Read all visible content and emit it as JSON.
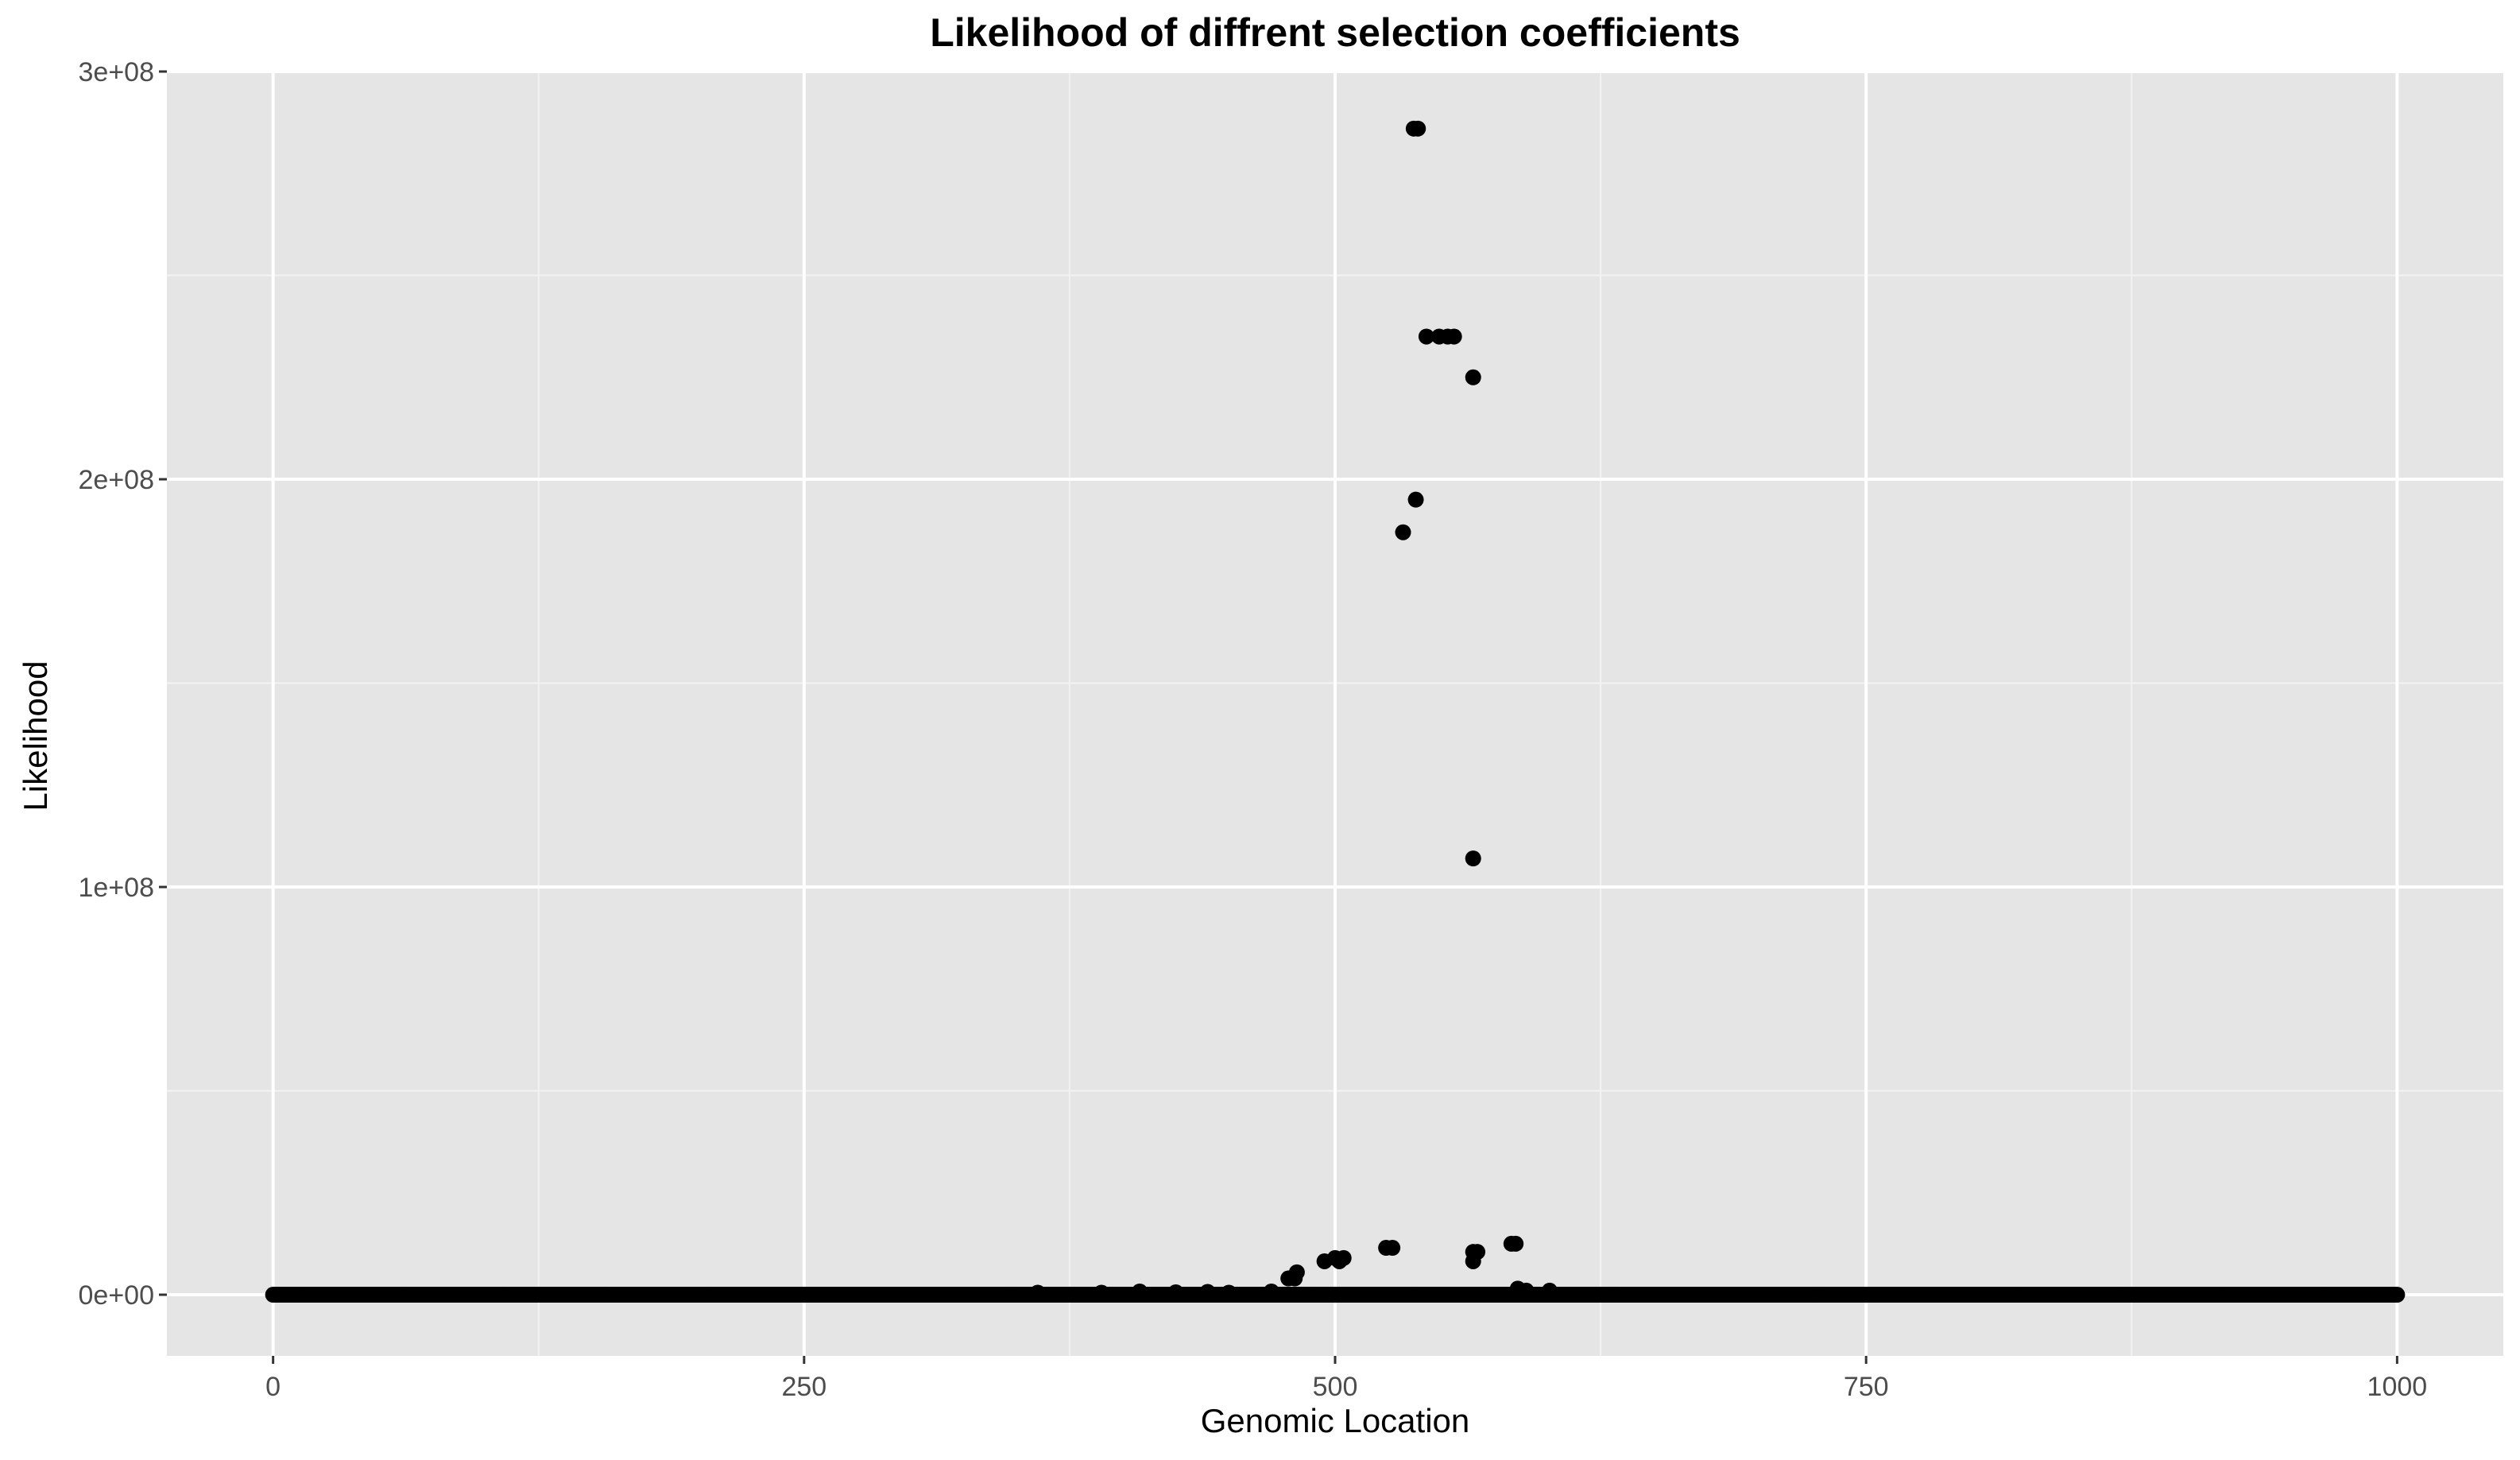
{
  "chart_data": {
    "type": "scatter",
    "title": "Likelihood of diffrent selection coefficients",
    "xlabel": "Genomic Location",
    "ylabel": "Likelihood",
    "xlim": [
      -50,
      1050
    ],
    "ylim": [
      -15000000,
      300000000
    ],
    "xticks": [
      0,
      250,
      500,
      750,
      1000
    ],
    "xtick_labels": [
      "0",
      "250",
      "500",
      "750",
      "1000"
    ],
    "yticks": [
      0,
      100000000,
      200000000,
      300000000
    ],
    "ytick_labels": [
      "0e+00",
      "1e+08",
      "2e+08",
      "3e+08"
    ],
    "grid": true,
    "baseline_points": {
      "x_start": 0,
      "x_end": 1000,
      "y": 0
    },
    "points": [
      {
        "x": 537,
        "y": 286000000
      },
      {
        "x": 539,
        "y": 286000000
      },
      {
        "x": 543,
        "y": 235000000
      },
      {
        "x": 549,
        "y": 235000000
      },
      {
        "x": 553,
        "y": 235000000
      },
      {
        "x": 556,
        "y": 235000000
      },
      {
        "x": 565,
        "y": 225000000
      },
      {
        "x": 538,
        "y": 195000000
      },
      {
        "x": 532,
        "y": 187000000
      },
      {
        "x": 565,
        "y": 107000000
      },
      {
        "x": 583,
        "y": 12500000
      },
      {
        "x": 585,
        "y": 12500000
      },
      {
        "x": 524,
        "y": 11500000
      },
      {
        "x": 527,
        "y": 11500000
      },
      {
        "x": 565,
        "y": 10500000
      },
      {
        "x": 567,
        "y": 10500000
      },
      {
        "x": 500,
        "y": 9000000
      },
      {
        "x": 504,
        "y": 9000000
      },
      {
        "x": 495,
        "y": 8200000
      },
      {
        "x": 502,
        "y": 8200000
      },
      {
        "x": 565,
        "y": 8200000
      },
      {
        "x": 482,
        "y": 5500000
      },
      {
        "x": 478,
        "y": 4000000
      },
      {
        "x": 481,
        "y": 4000000
      },
      {
        "x": 586,
        "y": 1500000
      },
      {
        "x": 590,
        "y": 1000000
      },
      {
        "x": 601,
        "y": 1000000
      },
      {
        "x": 360,
        "y": 500000
      },
      {
        "x": 390,
        "y": 500000
      },
      {
        "x": 408,
        "y": 800000
      },
      {
        "x": 425,
        "y": 600000
      },
      {
        "x": 440,
        "y": 700000
      },
      {
        "x": 450,
        "y": 500000
      },
      {
        "x": 470,
        "y": 800000
      }
    ]
  }
}
